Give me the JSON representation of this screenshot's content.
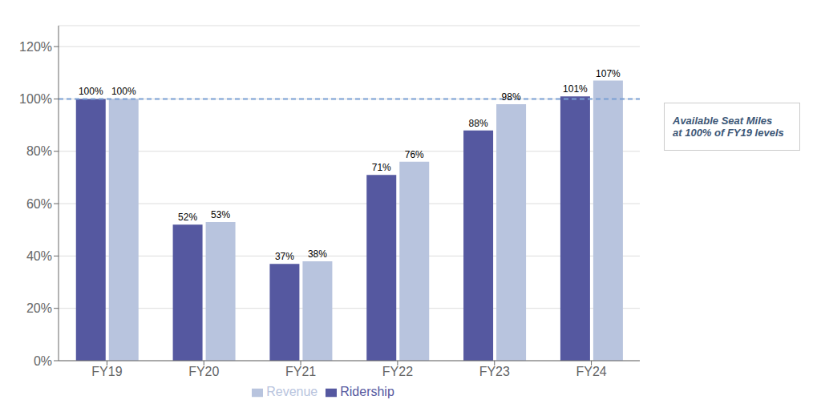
{
  "chart_data": {
    "type": "bar",
    "categories": [
      "FY19",
      "FY20",
      "FY21",
      "FY22",
      "FY23",
      "FY24"
    ],
    "series": [
      {
        "name": "Ridership",
        "color": "#5558a0",
        "values": [
          100,
          52,
          37,
          71,
          88,
          101
        ],
        "value_labels": [
          "100%",
          "52%",
          "37%",
          "71%",
          "88%",
          "101%"
        ]
      },
      {
        "name": "Revenue",
        "color": "#b8c4de",
        "values": [
          100,
          53,
          38,
          76,
          98,
          107
        ],
        "value_labels": [
          "100%",
          "53%",
          "38%",
          "76%",
          "98%",
          "107%"
        ]
      }
    ],
    "ylim": [
      0,
      128
    ],
    "yticks": [
      {
        "value": 0,
        "label": "0%"
      },
      {
        "value": 20,
        "label": "20%"
      },
      {
        "value": 40,
        "label": "40%"
      },
      {
        "value": 60,
        "label": "60%"
      },
      {
        "value": 80,
        "label": "80%"
      },
      {
        "value": 100,
        "label": "100%"
      },
      {
        "value": 120,
        "label": "120%"
      }
    ],
    "grid": true,
    "legend": "bottom",
    "data_labels": true,
    "reference_lines": [
      {
        "y": 100,
        "color": "#7b9fd4"
      }
    ],
    "annotation": "Available Seat Miles\nat 100% of FY19 levels"
  }
}
